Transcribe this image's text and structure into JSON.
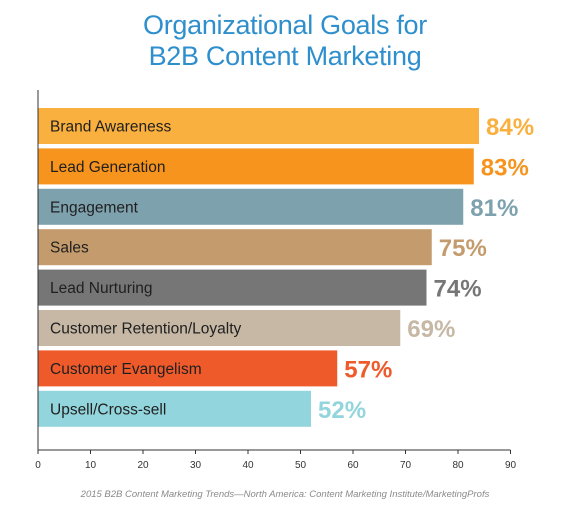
{
  "title_line1": "Organizational Goals for",
  "title_line2": "B2B Content Marketing",
  "source": "2015 B2B Content Marketing Trends—North America: Content Marketing Institute/MarketingProfs",
  "chart_data": {
    "type": "bar",
    "orientation": "horizontal",
    "title": "Organizational Goals for B2B Content Marketing",
    "categories": [
      "Brand Awareness",
      "Lead Generation",
      "Engagement",
      "Sales",
      "Lead Nurturing",
      "Customer Retention/Loyalty",
      "Customer Evangelism",
      "Upsell/Cross-sell"
    ],
    "values": [
      84,
      83,
      81,
      75,
      74,
      69,
      57,
      52
    ],
    "value_labels": [
      "84%",
      "83%",
      "81%",
      "75%",
      "74%",
      "69%",
      "57%",
      "52%"
    ],
    "colors": [
      "#f9b03f",
      "#f7941d",
      "#7ea1ae",
      "#c49b6c",
      "#767676",
      "#c6b8a4",
      "#ef5a2b",
      "#93d5dc"
    ],
    "xlim": [
      0,
      90
    ],
    "xticks": [
      "0",
      "10",
      "20",
      "30",
      "40",
      "50",
      "60",
      "70",
      "80",
      "90"
    ],
    "xlabel": "",
    "ylabel": "",
    "grid": false,
    "legend": "none"
  }
}
